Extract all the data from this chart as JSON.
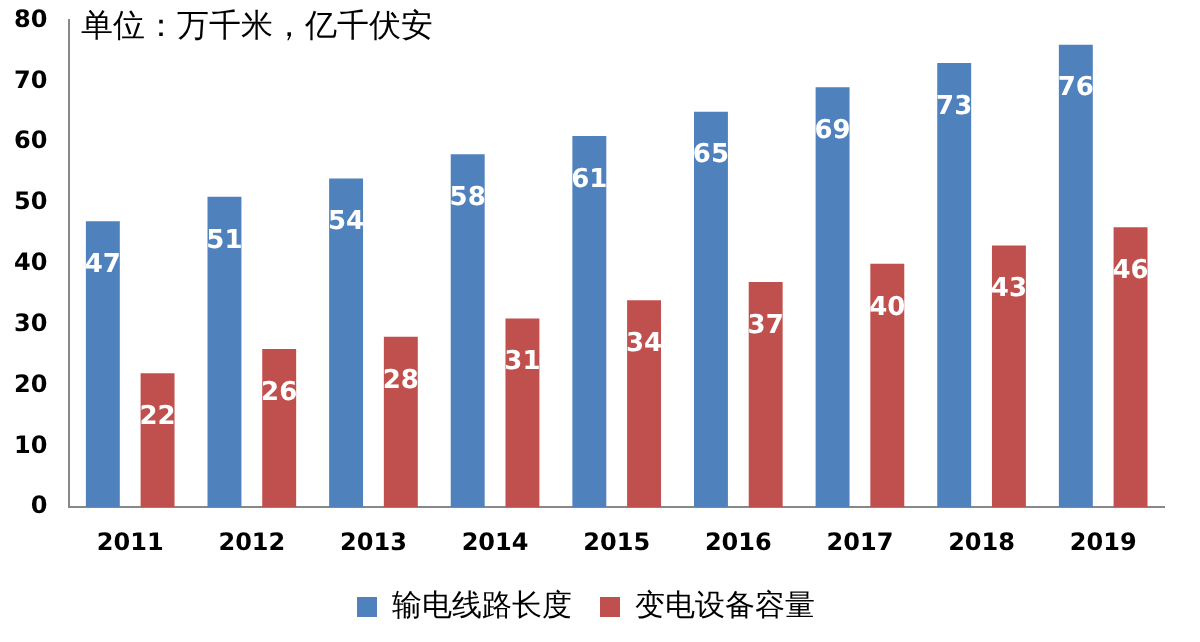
{
  "chart_data": {
    "type": "bar",
    "ylabel": "单位：万千米，亿千伏安",
    "categories": [
      "2011",
      "2012",
      "2013",
      "2014",
      "2015",
      "2016",
      "2017",
      "2018",
      "2019"
    ],
    "series": [
      {
        "name": "输电线路长度",
        "color": "#4f81bd",
        "values": [
          47,
          51,
          54,
          58,
          61,
          65,
          69,
          73,
          76
        ]
      },
      {
        "name": "变电设备容量",
        "color": "#c0504d",
        "values": [
          22,
          26,
          28,
          31,
          34,
          37,
          40,
          43,
          46
        ]
      }
    ],
    "ylim": [
      0,
      80
    ],
    "yticks": [
      0,
      10,
      20,
      30,
      40,
      50,
      60,
      70,
      80
    ],
    "grid": false,
    "legend": "bottom",
    "data_labels": true
  }
}
